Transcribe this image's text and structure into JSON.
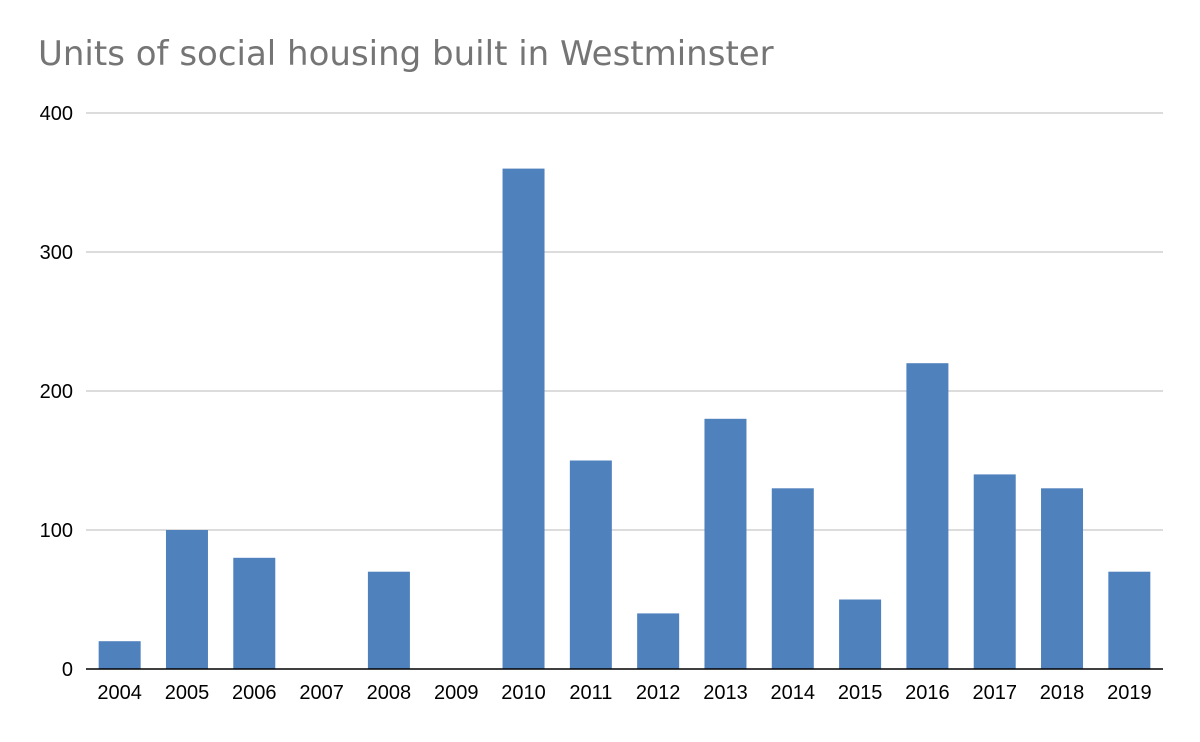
{
  "chart_data": {
    "type": "bar",
    "title": "Units of social housing built in Westminster",
    "xlabel": "",
    "ylabel": "",
    "categories": [
      "2004",
      "2005",
      "2006",
      "2007",
      "2008",
      "2009",
      "2010",
      "2011",
      "2012",
      "2013",
      "2014",
      "2015",
      "2016",
      "2017",
      "2018",
      "2019"
    ],
    "values": [
      20,
      100,
      80,
      0,
      70,
      0,
      360,
      150,
      40,
      180,
      130,
      50,
      220,
      140,
      130,
      70
    ],
    "ylim": [
      0,
      400
    ],
    "yticks": [
      "0",
      "100",
      "200",
      "300",
      "400"
    ],
    "grid": true,
    "legend": "none",
    "colors": {
      "bar": "#4f81bd",
      "grid": "#c8c8c8",
      "axis": "#000000"
    }
  }
}
